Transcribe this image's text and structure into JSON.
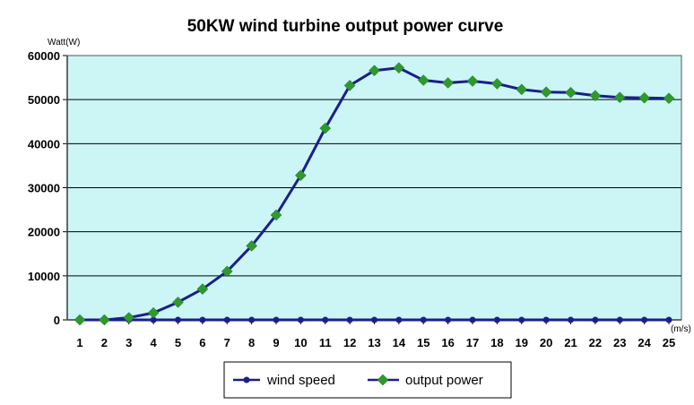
{
  "chart_data": {
    "type": "line",
    "title": "50KW wind turbine output power curve",
    "ylabel": "Watt(W)",
    "xlabel": "(m/s)",
    "ylim": [
      0,
      60000
    ],
    "yticks": [
      0,
      10000,
      20000,
      30000,
      40000,
      50000,
      60000
    ],
    "categories": [
      1,
      2,
      3,
      4,
      5,
      6,
      7,
      8,
      9,
      10,
      11,
      12,
      13,
      14,
      15,
      16,
      17,
      18,
      19,
      20,
      21,
      22,
      23,
      24,
      25
    ],
    "grid": true,
    "legend": "bottom",
    "series": [
      {
        "name": "wind speed",
        "marker": "circle",
        "color": "#1a1f8a",
        "values": [
          0,
          0,
          0,
          0,
          0,
          0,
          0,
          0,
          0,
          0,
          0,
          0,
          0,
          0,
          0,
          0,
          0,
          0,
          0,
          0,
          0,
          0,
          0,
          0,
          0
        ]
      },
      {
        "name": "output power",
        "marker": "diamond",
        "color": "#1a1f8a",
        "marker_color": "#2e9a2e",
        "values": [
          0,
          0,
          500,
          1600,
          4000,
          7000,
          11000,
          16800,
          23800,
          32800,
          43500,
          53200,
          56600,
          57200,
          54400,
          53800,
          54200,
          53600,
          52300,
          51700,
          51600,
          50900,
          50500,
          50400,
          50300
        ]
      }
    ],
    "plot_background": "#ccf5f5"
  }
}
